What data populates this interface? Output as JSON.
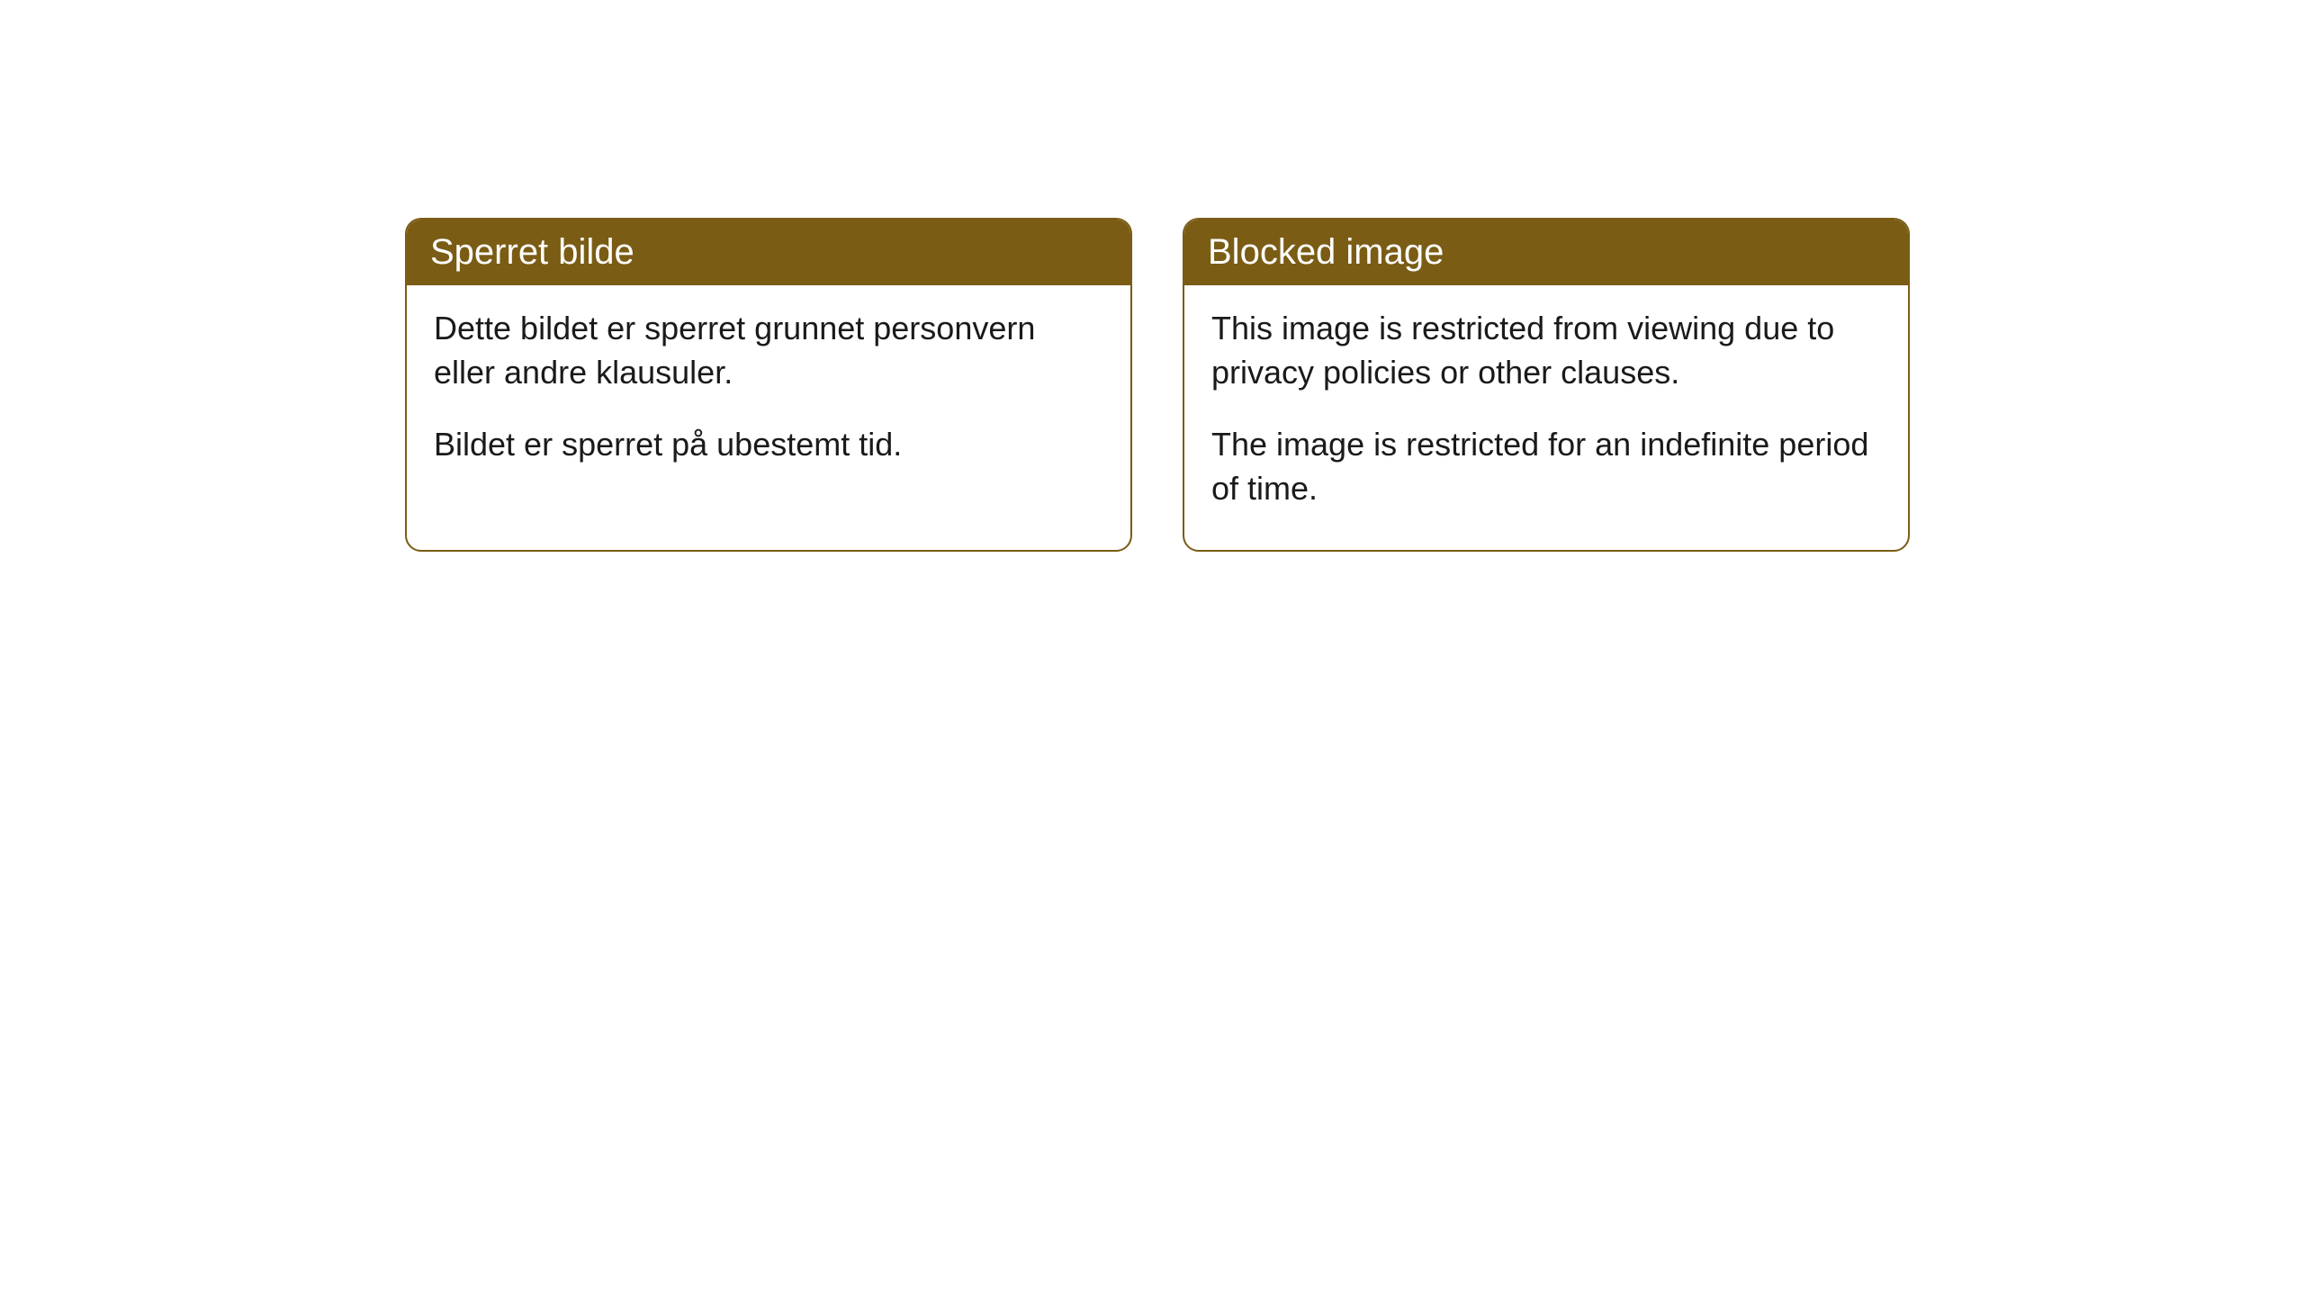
{
  "cards": [
    {
      "title": "Sperret bilde",
      "paragraph1": "Dette bildet er sperret grunnet personvern eller andre klausuler.",
      "paragraph2": "Bildet er sperret på ubestemt tid."
    },
    {
      "title": "Blocked image",
      "paragraph1": "This image is restricted from viewing due to privacy policies or other clauses.",
      "paragraph2": "The image is restricted for an indefinite period of time."
    }
  ],
  "styling": {
    "header_background_color": "#7a5c15",
    "header_text_color": "#ffffff",
    "body_text_color": "#1a1a1a",
    "card_border_color": "#7a5c15",
    "card_background_color": "#ffffff",
    "page_background_color": "#ffffff",
    "header_fontsize": 40,
    "body_fontsize": 36,
    "border_radius": 18
  }
}
